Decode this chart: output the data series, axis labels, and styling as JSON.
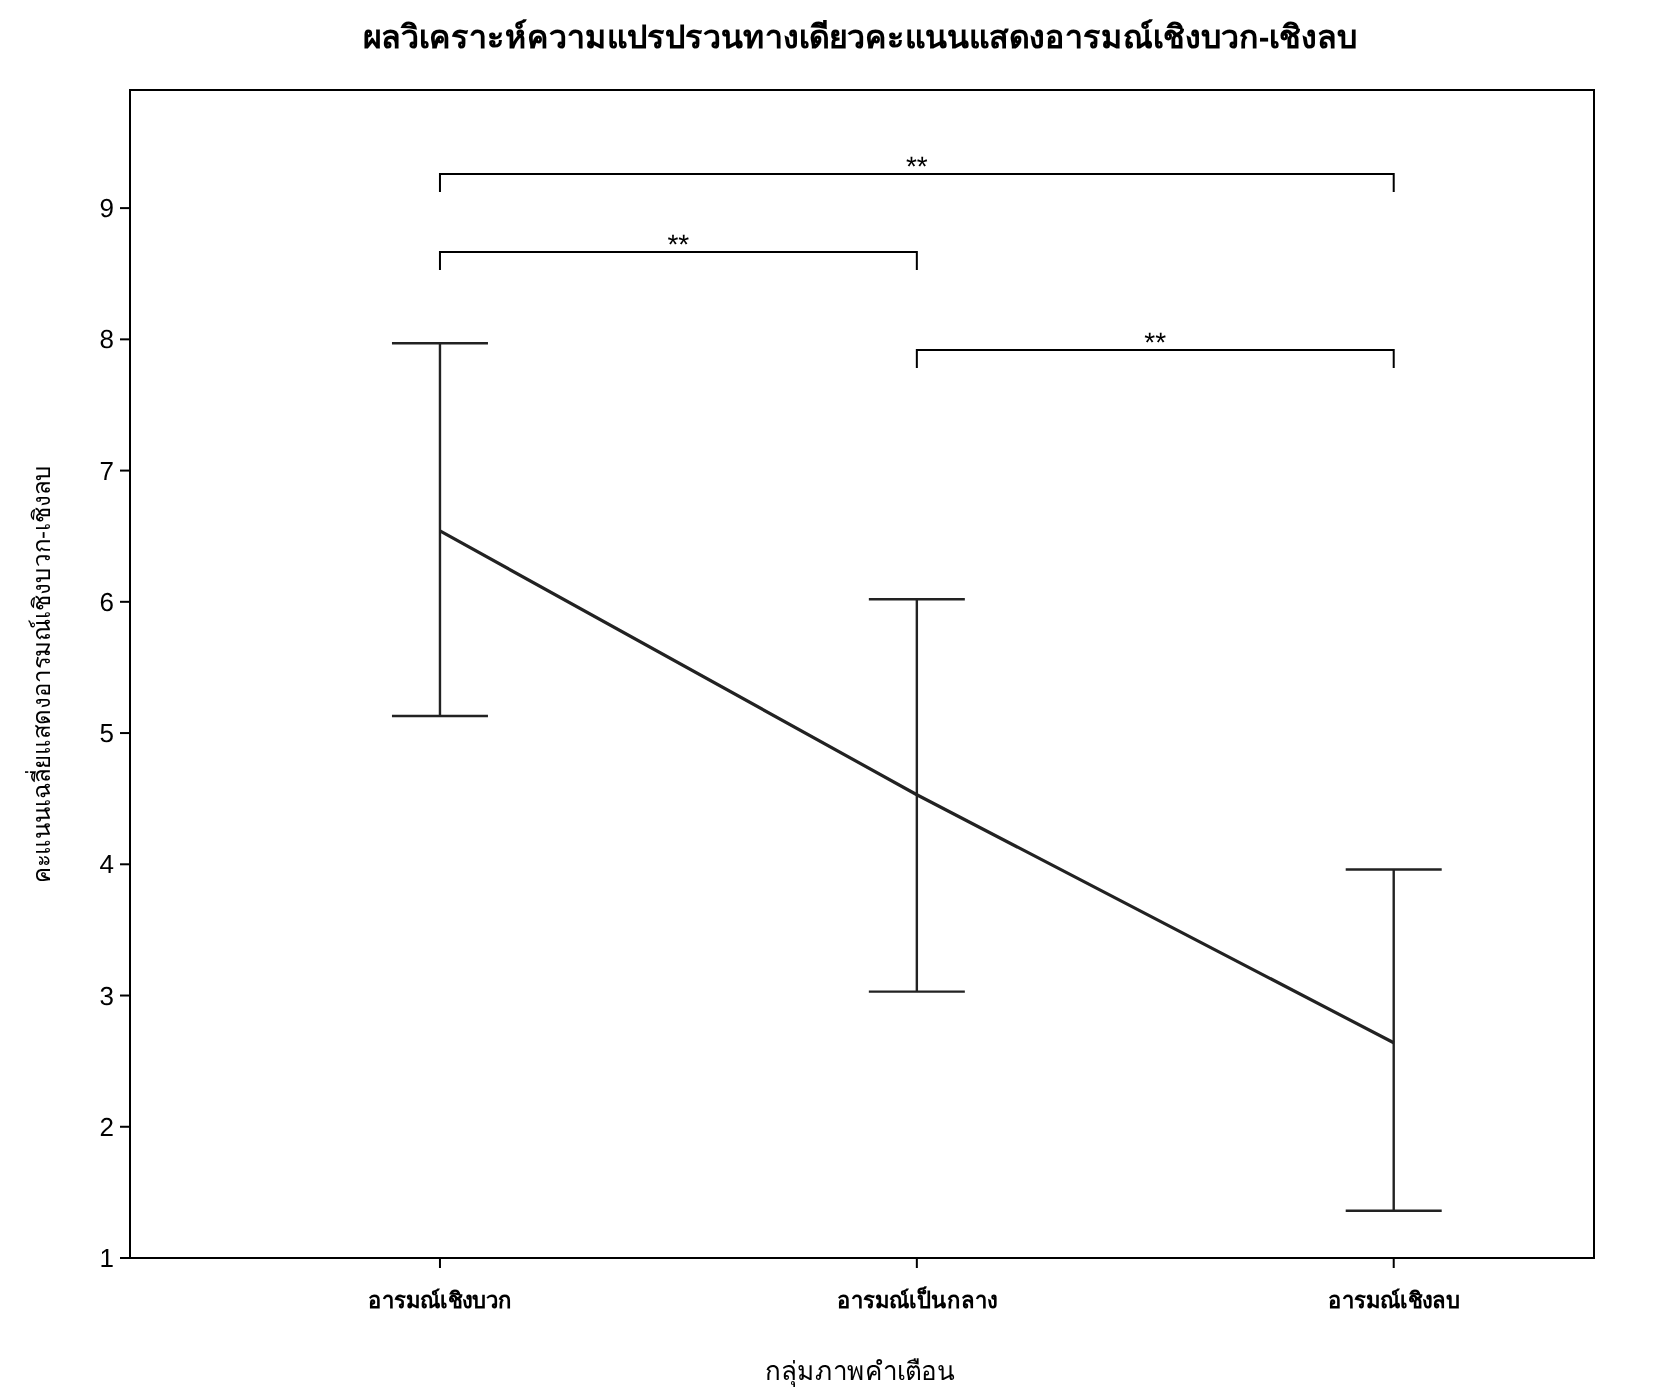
{
  "chart_data": {
    "type": "line",
    "title": "ผลวิเคราะห์ความแปรปรวนทางเดียวคะแนนแสดงอารมณ์เชิงบวก-เชิงลบ",
    "xlabel": "กลุ่มภาพคำเตือน",
    "ylabel": "คะแนนเฉลี่ยแสดงอารมณ์เชิงบวก-เชิงลบ",
    "categories": [
      "อารมณ์เชิงบวก",
      "อารมณ์เป็นกลาง",
      "อารมณ์เชิงลบ"
    ],
    "values": [
      6.54,
      4.53,
      2.64
    ],
    "errors": [
      [
        5.13,
        7.97
      ],
      [
        3.03,
        6.02
      ],
      [
        1.36,
        3.96
      ]
    ],
    "color": "#222222",
    "ylim": [
      1,
      9.9
    ],
    "yticks": [
      1,
      2,
      3,
      4,
      5,
      6,
      7,
      8,
      9
    ],
    "annotations": [
      "**",
      "**",
      "**"
    ]
  }
}
